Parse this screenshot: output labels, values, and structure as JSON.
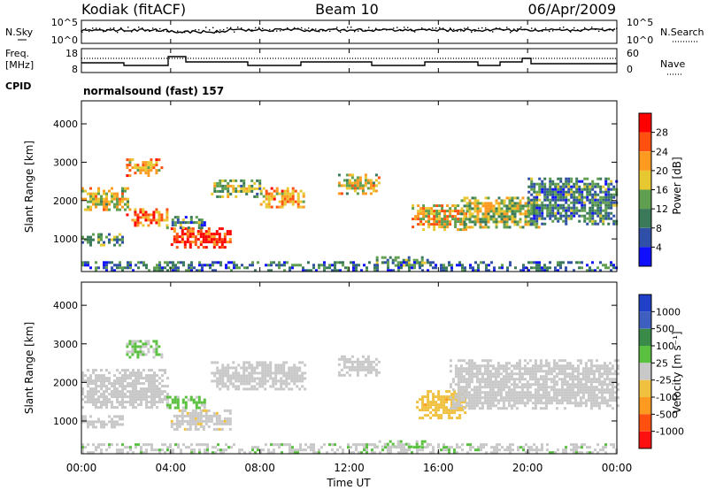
{
  "header": {
    "site": "Kodiak (fitACF)",
    "beam": "Beam 10",
    "date": "06/Apr/2009"
  },
  "top_panels": {
    "nsky_label": "N.Sky",
    "nsearch_label": "N.Search",
    "noise_ticks": [
      "10^5",
      "10^0"
    ],
    "freq_label_line1": "Freq.",
    "freq_label_line2": "[MHz]",
    "freq_ticks": [
      "18",
      "8"
    ],
    "nave_label": "Nave",
    "nave_ticks": [
      "60",
      "0"
    ],
    "cpid_label": "CPID",
    "cpid_value": "normalsound (fast) 157"
  },
  "time_axis": {
    "label": "Time UT",
    "ticks": [
      "00:00",
      "04:00",
      "08:00",
      "12:00",
      "16:00",
      "20:00",
      "00:00"
    ]
  },
  "colors": {
    "power_scale": [
      "#1010ff",
      "#2f4fa8",
      "#3a7a5a",
      "#5f9f4f",
      "#e8c830",
      "#ff9a20",
      "#ff5010",
      "#ff0000"
    ],
    "velocity_scale": [
      "#2040c8",
      "#3f5fc0",
      "#3a8a4a",
      "#5ac040",
      "#c8c8c8",
      "#f0c040",
      "#ff9a20",
      "#ff5010",
      "#ff1010"
    ]
  },
  "chart_data": [
    {
      "type": "heatmap",
      "title": "Power",
      "xlabel": "Time UT",
      "ylabel": "Slant Range [km]",
      "xlim": [
        0,
        24
      ],
      "ylim": [
        150,
        4600
      ],
      "yticks": [
        "1000",
        "2000",
        "3000",
        "4000"
      ],
      "colorbar": {
        "label": "Power [dB]",
        "ticks": [
          "4",
          "8",
          "12",
          "16",
          "20",
          "24",
          "28"
        ],
        "range": [
          0,
          32
        ]
      },
      "regions": [
        {
          "t0": 0.0,
          "t1": 2.1,
          "r0": 1750,
          "r1": 2350,
          "value": 18
        },
        {
          "t0": 2.0,
          "t1": 3.9,
          "r0": 1350,
          "r1": 1800,
          "value": 24
        },
        {
          "t0": 2.0,
          "t1": 3.6,
          "r0": 2650,
          "r1": 3100,
          "value": 22
        },
        {
          "t0": 0.0,
          "t1": 1.8,
          "r0": 850,
          "r1": 1150,
          "value": 12
        },
        {
          "t0": 4.0,
          "t1": 6.7,
          "r0": 750,
          "r1": 1300,
          "value": 29
        },
        {
          "t0": 3.8,
          "t1": 5.5,
          "r0": 1300,
          "r1": 1600,
          "value": 10
        },
        {
          "t0": 5.8,
          "t1": 8.0,
          "r0": 2100,
          "r1": 2550,
          "value": 14
        },
        {
          "t0": 8.0,
          "t1": 10.0,
          "r0": 1850,
          "r1": 2350,
          "value": 22
        },
        {
          "t0": 11.5,
          "t1": 13.4,
          "r0": 2150,
          "r1": 2700,
          "value": 18
        },
        {
          "t0": 13.2,
          "t1": 15.5,
          "r0": 280,
          "r1": 550,
          "value": 12
        },
        {
          "t0": 14.8,
          "t1": 17.2,
          "r0": 1250,
          "r1": 1900,
          "value": 20
        },
        {
          "t0": 17.0,
          "t1": 20.5,
          "r0": 1300,
          "r1": 2100,
          "value": 16
        },
        {
          "t0": 20.0,
          "t1": 24.0,
          "r0": 1400,
          "r1": 2600,
          "value": 10
        },
        {
          "t0": 0.0,
          "t1": 24.0,
          "r0": 160,
          "r1": 420,
          "value": 8
        }
      ]
    },
    {
      "type": "heatmap",
      "title": "Velocity",
      "xlabel": "Time UT",
      "ylabel": "Slant Range [km]",
      "xlim": [
        0,
        24
      ],
      "ylim": [
        150,
        4600
      ],
      "yticks": [
        "1000",
        "2000",
        "3000",
        "4000"
      ],
      "colorbar": {
        "label": "Velocity [m s⁻¹]",
        "ticks": [
          "1000",
          "500",
          "100",
          "25",
          "-25",
          "-100",
          "-500",
          "-1000"
        ],
        "range": [
          -1250,
          1250
        ]
      },
      "regions": [
        {
          "t0": 0.0,
          "t1": 3.9,
          "r0": 1350,
          "r1": 2350,
          "value": 0
        },
        {
          "t0": 2.0,
          "t1": 3.6,
          "r0": 2650,
          "r1": 3100,
          "value": 150
        },
        {
          "t0": 0.0,
          "t1": 1.8,
          "r0": 850,
          "r1": 1150,
          "value": 0
        },
        {
          "t0": 3.8,
          "t1": 5.5,
          "r0": 1350,
          "r1": 1650,
          "value": 200
        },
        {
          "t0": 4.0,
          "t1": 6.7,
          "r0": 800,
          "r1": 1300,
          "value": -60
        },
        {
          "t0": 5.8,
          "t1": 10.0,
          "r0": 1850,
          "r1": 2550,
          "value": 0
        },
        {
          "t0": 11.5,
          "t1": 13.4,
          "r0": 2150,
          "r1": 2700,
          "value": 0
        },
        {
          "t0": 13.2,
          "t1": 15.5,
          "r0": 300,
          "r1": 500,
          "value": 150
        },
        {
          "t0": 15.0,
          "t1": 17.2,
          "r0": 1100,
          "r1": 1800,
          "value": -300
        },
        {
          "t0": 16.5,
          "t1": 24.0,
          "r0": 1300,
          "r1": 2600,
          "value": 0
        },
        {
          "t0": 0.0,
          "t1": 24.0,
          "r0": 160,
          "r1": 420,
          "value": 60
        }
      ]
    }
  ]
}
